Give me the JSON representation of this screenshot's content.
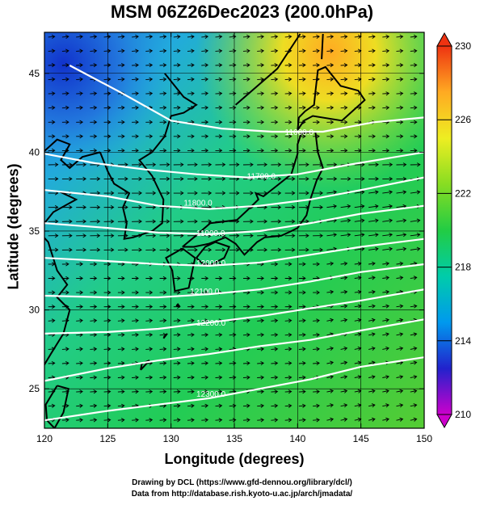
{
  "title": "MSM 06Z26Dec2023 (200.0hPa)",
  "x_axis": {
    "label": "Longitude (degrees)",
    "ticks": [
      "120",
      "125",
      "130",
      "135",
      "140",
      "145",
      "150"
    ],
    "range": [
      120,
      150
    ]
  },
  "y_axis": {
    "label": "Latitude  (degrees)",
    "ticks": [
      "25",
      "30",
      "35",
      "40",
      "45"
    ],
    "range": [
      22.5,
      47.6
    ]
  },
  "colorbar": {
    "ticks": [
      "230",
      "226",
      "222",
      "218",
      "214",
      "210"
    ],
    "range": [
      210,
      230
    ],
    "colors": [
      "#cc00cc",
      "#2222cc",
      "#0099ee",
      "#00ccaa",
      "#22cc44",
      "#88dd22",
      "#eeee22",
      "#ffaa22",
      "#ee3311"
    ]
  },
  "contours": [
    {
      "label": "11600.0",
      "lon": 139.0,
      "lat": 41.1
    },
    {
      "label": "11700.0",
      "lon": 136.0,
      "lat": 38.3
    },
    {
      "label": "11800.0",
      "lon": 131.0,
      "lat": 36.6
    },
    {
      "label": "11900.0",
      "lon": 132.0,
      "lat": 34.7
    },
    {
      "label": "12000.0",
      "lon": 132.0,
      "lat": 32.8
    },
    {
      "label": "12100.0",
      "lon": 131.5,
      "lat": 31.0
    },
    {
      "label": "12200.0",
      "lon": 132.0,
      "lat": 29.0
    },
    {
      "label": "12300.0",
      "lon": 132.0,
      "lat": 24.5
    }
  ],
  "credits": {
    "line1": "Drawing by DCL (https://www.gfd-dennou.org/library/dcl/)",
    "line2": "Data from http://database.rish.kyoto-u.ac.jp/arch/jmadata/"
  }
}
